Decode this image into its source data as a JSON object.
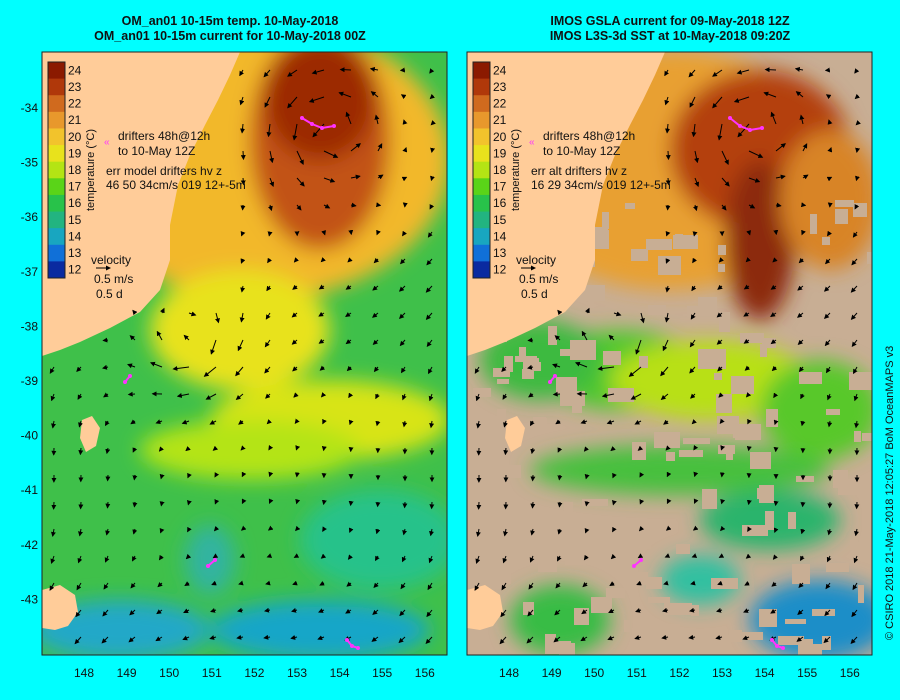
{
  "panels": [
    {
      "id": "left",
      "title_line1": "OM_an01 10-15m temp. 10-May-2018",
      "title_line2": "OM_an01 10-15m current for 10-May-2018 00Z",
      "colorbar_label": "temperature (°C)",
      "drifter_legend": [
        "drifters 48h@12h",
        "to 10-May 12Z"
      ],
      "error_legend": [
        "err model drifters hv z",
        "46 50 34cm/s 019 12+-5m"
      ],
      "velocity_legend": [
        "velocity",
        "0.5 m/s",
        "0.5 d"
      ]
    },
    {
      "id": "right",
      "title_line1": "IMOS GSLA current for 09-May-2018 12Z",
      "title_line2": "IMOS L3S-3d SST at 10-May-2018 09:20Z",
      "colorbar_label": "temperature (°C)",
      "drifter_legend": [
        "drifters 48h@12h",
        "to 10-May 12Z"
      ],
      "error_legend": [
        "err alt drifters hv z",
        "16 29 34cm/s 019 12+-5m"
      ],
      "velocity_legend": [
        "velocity",
        "0.5 m/s",
        "0.5 d"
      ]
    }
  ],
  "colorbar_ticks": [
    "24",
    "23",
    "22",
    "21",
    "20",
    "19",
    "18",
    "17",
    "16",
    "15",
    "14",
    "13",
    "12"
  ],
  "colorbar_colors": [
    "#8b1a00",
    "#b0380a",
    "#d06a1e",
    "#e8982c",
    "#f2c32c",
    "#e8e21c",
    "#b4e414",
    "#5ad418",
    "#28c24a",
    "#22b480",
    "#18a6c0",
    "#1070d8",
    "#0a2aa0"
  ],
  "lat_labels": [
    "-34",
    "-35",
    "-36",
    "-37",
    "-38",
    "-39",
    "-40",
    "-41",
    "-42",
    "-43"
  ],
  "lon_labels": [
    "148",
    "149",
    "150",
    "151",
    "152",
    "153",
    "154",
    "155",
    "156"
  ],
  "credit": "© CSIRO 2018   21-May-2018 12:05:27 BoM OceanMAPS v3",
  "colors": {
    "background": "#00ffff",
    "land": "#ffcc99",
    "cloud": "#c8ae94",
    "drifter": "#ff33ff",
    "arrow": "#000000"
  }
}
